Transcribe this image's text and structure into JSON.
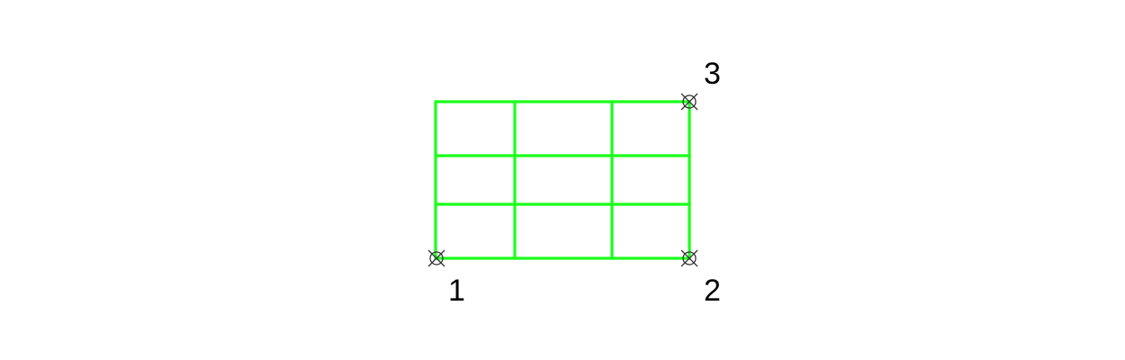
{
  "diagram": {
    "grid_color": "#1aff1a",
    "marker_color": "#333333",
    "label_color": "#000000",
    "grid": {
      "columns": 3,
      "rows": 3
    },
    "points": [
      {
        "label": "1",
        "name": "point-1"
      },
      {
        "label": "2",
        "name": "point-2"
      },
      {
        "label": "3",
        "name": "point-3"
      }
    ]
  }
}
